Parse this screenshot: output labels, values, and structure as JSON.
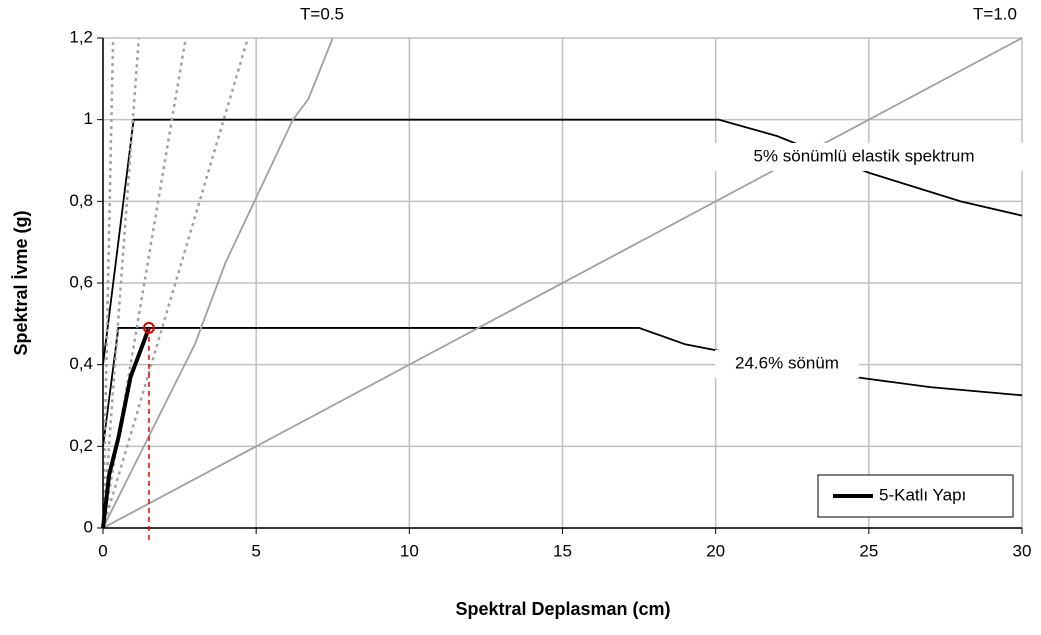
{
  "chart_data": {
    "type": "line",
    "xlabel": "Spektral Deplasman (cm)",
    "ylabel": "Spektral İvme (g)",
    "xlim": [
      0,
      30
    ],
    "ylim": [
      0,
      1.2
    ],
    "xticks": [
      0,
      5,
      10,
      15,
      20,
      25,
      30
    ],
    "yticks": [
      0,
      {
        "value": 0.2,
        "label": "0,2"
      },
      {
        "value": 0.4,
        "label": "0,4"
      },
      {
        "value": 0.6,
        "label": "0,6"
      },
      {
        "value": 0.8,
        "label": "0,8"
      },
      1,
      {
        "value": 1.2,
        "label": "1,2"
      }
    ],
    "grid": true,
    "legend": "lower right",
    "series": [
      {
        "name": "5-Katlı Yapı",
        "color": "#000000",
        "x": [
          0,
          0.2,
          0.5,
          0.9,
          1.2,
          1.5
        ],
        "values": [
          0,
          0.13,
          0.22,
          0.37,
          0.43,
          0.49
        ]
      }
    ],
    "reference_curves": [
      {
        "color": "#000000",
        "style": "solid",
        "x": [
          0,
          1.0,
          20.1,
          22,
          25,
          28,
          30
        ],
        "values": [
          0.4,
          1.0,
          1.0,
          0.96,
          0.87,
          0.8,
          0.765
        ]
      },
      {
        "color": "#000000",
        "style": "solid",
        "x": [
          0,
          0.5,
          17.5,
          19,
          24.5,
          27,
          30
        ],
        "values": [
          0.2,
          0.49,
          0.49,
          0.45,
          0.37,
          0.345,
          0.325
        ]
      },
      {
        "color": "#a0a0a0",
        "style": "solid",
        "x": [
          0,
          30
        ],
        "values": [
          0,
          1.2
        ]
      },
      {
        "color": "#a0a0a0",
        "style": "solid",
        "x": [
          0,
          3,
          4,
          6.2,
          6.7,
          7.5
        ],
        "values": [
          0,
          0.45,
          0.65,
          1.0,
          1.05,
          1.2
        ]
      },
      {
        "color": "#a0a0a0",
        "style": "dotted",
        "x": [
          0,
          0.33
        ],
        "values": [
          0,
          1.2
        ]
      },
      {
        "color": "#a0a0a0",
        "style": "dotted",
        "x": [
          0,
          1.17
        ],
        "values": [
          0,
          1.2
        ]
      },
      {
        "color": "#a0a0a0",
        "style": "dotted",
        "x": [
          0,
          2.7
        ],
        "values": [
          0,
          1.2
        ]
      },
      {
        "color": "#a0a0a0",
        "style": "dotted",
        "x": [
          0,
          4.73
        ],
        "values": [
          0,
          1.2
        ]
      }
    ],
    "performance_point": {
      "x": 1.5,
      "y": 0.49,
      "color": "#e00000"
    },
    "annotations": [
      "T=0.5",
      "T=1.0",
      "5% sönümlü elastik spektrum",
      "24.6% sönüm"
    ]
  }
}
